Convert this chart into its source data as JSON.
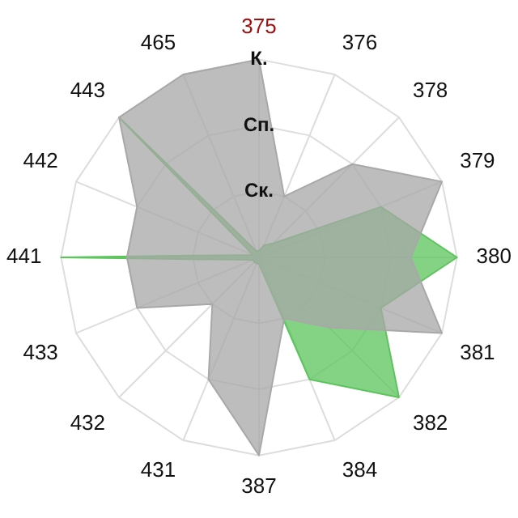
{
  "chart_data": {
    "type": "radar",
    "categories": [
      "375",
      "376",
      "378",
      "379",
      "380",
      "381",
      "382",
      "384",
      "387",
      "431",
      "432",
      "433",
      "441",
      "442",
      "443",
      "465"
    ],
    "series": [
      {
        "color": "#a8a8a8",
        "values": [
          3,
          1,
          2,
          3,
          2.3,
          3,
          1.5,
          1,
          3,
          2,
          1,
          2,
          2,
          2,
          3,
          3
        ]
      },
      {
        "color": "#5cc45c",
        "values": [
          0.1,
          0.2,
          0.3,
          2,
          3,
          2,
          3,
          2,
          0.1,
          0.1,
          0.1,
          0.1,
          3,
          0.1,
          3,
          0.1
        ]
      }
    ],
    "ylim": [
      0,
      3
    ],
    "yticks": [
      {
        "value": 1,
        "label": "Ск."
      },
      {
        "value": 2,
        "label": "Сп."
      },
      {
        "value": 3,
        "label": "К."
      }
    ],
    "grid": true,
    "marker": "none",
    "legend": false
  }
}
